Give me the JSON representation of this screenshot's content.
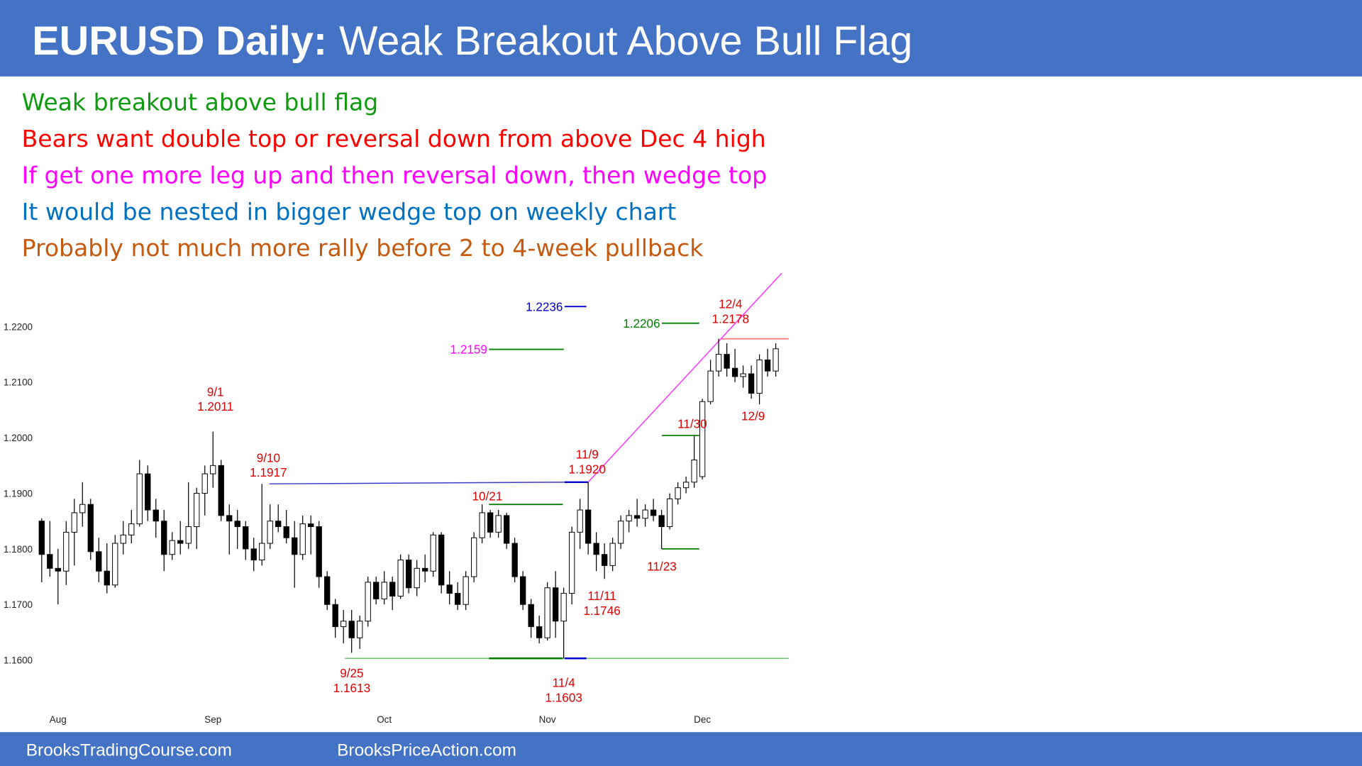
{
  "header": {
    "title_bold": "EURUSD Daily:",
    "title": "Weak Breakout Above Bull Flag"
  },
  "notes": [
    {
      "text": "Weak breakout above bull flag",
      "color": "#109a10"
    },
    {
      "text": "Bears want double top or reversal down from above Dec 4 high",
      "color": "#ff0000"
    },
    {
      "text": "If get one more leg up and then reversal down, then wedge top",
      "color": "#ff00ff"
    },
    {
      "text": "It would be nested in bigger wedge top on weekly chart",
      "color": "#0070c0"
    },
    {
      "text": "Probably not much more rally before 2 to 4-week pullback",
      "color": "#c55a11"
    }
  ],
  "footer": [
    "BrooksTradingCourse.com",
    "BrooksPriceAction.com"
  ],
  "chart_data": {
    "type": "candlestick",
    "up_color": "#ffffff",
    "down_color": "#000000",
    "ylim": [
      1.153,
      1.227
    ],
    "yticks": [
      {
        "value": 1.16,
        "label": "1.1600"
      },
      {
        "value": 1.17,
        "label": "1.1700"
      },
      {
        "value": 1.18,
        "label": "1.1800"
      },
      {
        "value": 1.19,
        "label": "1.1900"
      },
      {
        "value": 1.2,
        "label": "1.2000"
      },
      {
        "value": 1.21,
        "label": "1.2100"
      },
      {
        "value": 1.22,
        "label": "1.2200"
      }
    ],
    "categories": [
      null,
      null,
      "Aug",
      null,
      null,
      null,
      null,
      null,
      null,
      null,
      null,
      null,
      null,
      null,
      null,
      null,
      null,
      null,
      null,
      null,
      null,
      "Sep",
      null,
      null,
      null,
      null,
      null,
      null,
      null,
      null,
      null,
      null,
      null,
      null,
      null,
      null,
      null,
      null,
      null,
      null,
      null,
      null,
      "Oct",
      null,
      null,
      null,
      null,
      null,
      null,
      null,
      null,
      null,
      null,
      null,
      null,
      null,
      null,
      null,
      null,
      null,
      null,
      null,
      "Nov",
      null,
      null,
      null,
      null,
      null,
      null,
      null,
      null,
      null,
      null,
      null,
      null,
      null,
      null,
      null,
      null,
      null,
      null,
      "Dec",
      null,
      null,
      null,
      null,
      null,
      null,
      null,
      null,
      null
    ],
    "candles": [
      [
        1.185,
        1.1855,
        1.174,
        1.179
      ],
      [
        1.179,
        1.185,
        1.175,
        1.1765
      ],
      [
        1.1765,
        1.18,
        1.17,
        1.176
      ],
      [
        1.176,
        1.185,
        1.1735,
        1.183
      ],
      [
        1.183,
        1.189,
        1.177,
        1.1865
      ],
      [
        1.1865,
        1.192,
        1.184,
        1.188
      ],
      [
        1.188,
        1.189,
        1.178,
        1.1795
      ],
      [
        1.1795,
        1.182,
        1.174,
        1.176
      ],
      [
        1.176,
        1.181,
        1.172,
        1.1735
      ],
      [
        1.1735,
        1.1825,
        1.173,
        1.181
      ],
      [
        1.181,
        1.185,
        1.179,
        1.1825
      ],
      [
        1.1825,
        1.187,
        1.181,
        1.1845
      ],
      [
        1.1845,
        1.196,
        1.184,
        1.1935
      ],
      [
        1.1935,
        1.195,
        1.185,
        1.187
      ],
      [
        1.187,
        1.189,
        1.182,
        1.185
      ],
      [
        1.185,
        1.187,
        1.176,
        1.179
      ],
      [
        1.179,
        1.183,
        1.178,
        1.1815
      ],
      [
        1.1815,
        1.185,
        1.179,
        1.181
      ],
      [
        1.181,
        1.192,
        1.18,
        1.184
      ],
      [
        1.184,
        1.191,
        1.18,
        1.19
      ],
      [
        1.19,
        1.195,
        1.186,
        1.1935
      ],
      [
        1.1935,
        1.2011,
        1.191,
        1.195
      ],
      [
        1.195,
        1.196,
        1.185,
        1.186
      ],
      [
        1.186,
        1.188,
        1.179,
        1.185
      ],
      [
        1.185,
        1.187,
        1.18,
        1.184
      ],
      [
        1.184,
        1.185,
        1.178,
        1.18
      ],
      [
        1.18,
        1.182,
        1.176,
        1.178
      ],
      [
        1.178,
        1.1917,
        1.177,
        1.181
      ],
      [
        1.181,
        1.188,
        1.18,
        1.185
      ],
      [
        1.185,
        1.188,
        1.183,
        1.184
      ],
      [
        1.184,
        1.187,
        1.181,
        1.182
      ],
      [
        1.182,
        1.185,
        1.173,
        1.179
      ],
      [
        1.179,
        1.186,
        1.178,
        1.1845
      ],
      [
        1.1845,
        1.186,
        1.179,
        1.184
      ],
      [
        1.184,
        1.185,
        1.173,
        1.175
      ],
      [
        1.175,
        1.176,
        1.169,
        1.17
      ],
      [
        1.17,
        1.171,
        1.164,
        1.166
      ],
      [
        1.166,
        1.169,
        1.163,
        1.167
      ],
      [
        1.167,
        1.169,
        1.1613,
        1.164
      ],
      [
        1.164,
        1.168,
        1.162,
        1.167
      ],
      [
        1.167,
        1.175,
        1.166,
        1.174
      ],
      [
        1.174,
        1.175,
        1.17,
        1.171
      ],
      [
        1.171,
        1.176,
        1.17,
        1.174
      ],
      [
        1.174,
        1.175,
        1.169,
        1.1715
      ],
      [
        1.1715,
        1.179,
        1.171,
        1.178
      ],
      [
        1.178,
        1.179,
        1.172,
        1.173
      ],
      [
        1.173,
        1.178,
        1.1715,
        1.1765
      ],
      [
        1.1765,
        1.179,
        1.174,
        1.176
      ],
      [
        1.176,
        1.183,
        1.175,
        1.1825
      ],
      [
        1.1825,
        1.183,
        1.172,
        1.1735
      ],
      [
        1.1735,
        1.176,
        1.17,
        1.172
      ],
      [
        1.172,
        1.174,
        1.169,
        1.17
      ],
      [
        1.17,
        1.176,
        1.169,
        1.175
      ],
      [
        1.175,
        1.183,
        1.174,
        1.182
      ],
      [
        1.182,
        1.188,
        1.181,
        1.1865
      ],
      [
        1.1865,
        1.187,
        1.182,
        1.183
      ],
      [
        1.183,
        1.187,
        1.182,
        1.186
      ],
      [
        1.186,
        1.1865,
        1.18,
        1.181
      ],
      [
        1.181,
        1.182,
        1.174,
        1.175
      ],
      [
        1.175,
        1.176,
        1.169,
        1.17
      ],
      [
        1.17,
        1.171,
        1.164,
        1.166
      ],
      [
        1.166,
        1.168,
        1.163,
        1.164
      ],
      [
        1.164,
        1.174,
        1.1635,
        1.173
      ],
      [
        1.173,
        1.176,
        1.164,
        1.167
      ],
      [
        1.167,
        1.173,
        1.1603,
        1.172
      ],
      [
        1.172,
        1.184,
        1.17,
        1.183
      ],
      [
        1.183,
        1.189,
        1.18,
        1.187
      ],
      [
        1.187,
        1.192,
        1.179,
        1.181
      ],
      [
        1.181,
        1.183,
        1.176,
        1.179
      ],
      [
        1.179,
        1.181,
        1.1746,
        1.177
      ],
      [
        1.177,
        1.182,
        1.176,
        1.181
      ],
      [
        1.181,
        1.186,
        1.18,
        1.185
      ],
      [
        1.185,
        1.187,
        1.183,
        1.186
      ],
      [
        1.186,
        1.189,
        1.184,
        1.1855
      ],
      [
        1.1855,
        1.188,
        1.184,
        1.187
      ],
      [
        1.187,
        1.189,
        1.185,
        1.186
      ],
      [
        1.186,
        1.187,
        1.18,
        1.184
      ],
      [
        1.184,
        1.19,
        1.1835,
        1.189
      ],
      [
        1.189,
        1.192,
        1.188,
        1.191
      ],
      [
        1.191,
        1.193,
        1.19,
        1.192
      ],
      [
        1.192,
        1.2004,
        1.191,
        1.196
      ],
      [
        1.193,
        1.207,
        1.1925,
        1.2065
      ],
      [
        1.2065,
        1.214,
        1.206,
        1.212
      ],
      [
        1.212,
        1.2178,
        1.211,
        1.215
      ],
      [
        1.215,
        1.217,
        1.211,
        1.2125
      ],
      [
        1.2125,
        1.216,
        1.21,
        1.211
      ],
      [
        1.211,
        1.213,
        1.209,
        1.2115
      ],
      [
        1.2115,
        1.213,
        1.207,
        1.208
      ],
      [
        1.208,
        1.215,
        1.206,
        1.214
      ],
      [
        1.214,
        1.216,
        1.211,
        1.212
      ],
      [
        1.212,
        1.217,
        1.211,
        1.216
      ]
    ],
    "annotations": [
      {
        "date": "9/1",
        "price": {
          "value": 1.2011,
          "label": "1.2011"
        }
      },
      {
        "date": "9/10",
        "price": {
          "value": 1.1917,
          "label": "1.1917"
        }
      },
      {
        "date": "9/25",
        "price": {
          "value": 1.1613,
          "label": "1.1613"
        }
      },
      {
        "date": "10/21"
      },
      {
        "date": "11/4",
        "price": {
          "value": 1.1603,
          "label": "1.1603"
        }
      },
      {
        "date": "11/9",
        "price": {
          "value": 1.192,
          "label": "1.1920"
        }
      },
      {
        "date": "11/11",
        "price": {
          "value": 1.1746,
          "label": "1.1746"
        }
      },
      {
        "date": "11/23"
      },
      {
        "date": "11/30"
      },
      {
        "date": "12/4",
        "price": {
          "value": 1.2178,
          "label": "1.2178"
        }
      },
      {
        "date": "12/9"
      }
    ],
    "levels": [
      {
        "value": 1.2236,
        "label": "1.2236",
        "color": "#0000cc",
        "label_color": "#0000cc"
      },
      {
        "value": 1.2206,
        "label": "1.2206",
        "color": "#008000",
        "label_color": "#008000"
      },
      {
        "value": 1.2159,
        "label": "1.2159",
        "color": "#008000",
        "label_color": "#ff00ff"
      }
    ]
  }
}
